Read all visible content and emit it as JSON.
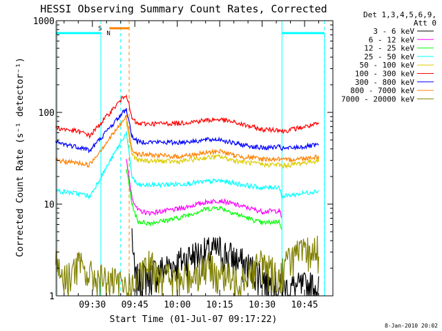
{
  "chart_data": {
    "type": "line",
    "title": "HESSI Observing Summary Count Rates, Corrected",
    "xlabel": "Start Time (01-Jul-07 09:17:22)",
    "ylabel": "Corrected Count Rate (s⁻¹ detector⁻¹)",
    "y_scale": "log",
    "ylim": [
      1,
      1000
    ],
    "xlim": [
      "09:17:22",
      "10:55:00"
    ],
    "x_ticks": [
      "09:30",
      "09:45",
      "10:00",
      "10:15",
      "10:30",
      "10:45"
    ],
    "y_ticks": [
      "1",
      "10",
      "100",
      "1000"
    ],
    "grid": false,
    "legend_position": "right",
    "legend_header": [
      "Det 1,3,4,5,6,9,",
      "Att 0"
    ],
    "series": [
      {
        "name": "3 - 6 keV",
        "color": "#000000",
        "x": [
          "09:17",
          "09:30",
          "09:36",
          "09:39",
          "09:41",
          "09:42",
          "09:44",
          "09:45",
          "10:00",
          "10:05",
          "10:15",
          "10:20",
          "10:30",
          "10:32",
          "10:37",
          "10:50"
        ],
        "y": [
          null,
          null,
          null,
          null,
          null,
          null,
          5,
          1.5,
          2.3,
          2.8,
          3.2,
          2.6,
          1.7,
          1.4,
          1.2,
          1.3
        ]
      },
      {
        "name": "6 - 12 keV",
        "color": "#ff00ff",
        "x": [
          "09:42",
          "09:44",
          "09:46",
          "09:50",
          "10:00",
          "10:10",
          "10:15",
          "10:20",
          "10:30",
          "10:36",
          "10:37"
        ],
        "y": [
          30,
          12,
          8.5,
          8,
          8.8,
          10.5,
          11,
          10,
          8.3,
          8.5,
          7
        ]
      },
      {
        "name": "12 - 25 keV",
        "color": "#00ff00",
        "x": [
          "09:42",
          "09:44",
          "09:46",
          "09:50",
          "10:00",
          "10:10",
          "10:15",
          "10:20",
          "10:30",
          "10:36",
          "10:37"
        ],
        "y": [
          25,
          10,
          6.5,
          6.2,
          7,
          8.8,
          9.2,
          8,
          6.2,
          6.5,
          5.5
        ]
      },
      {
        "name": "25 - 50 keV",
        "color": "#00ffff",
        "x": [
          "09:17",
          "09:25",
          "09:28",
          "09:29",
          "09:42",
          "09:44",
          "09:46",
          "10:00",
          "10:10",
          "10:15",
          "10:20",
          "10:30",
          "10:36",
          "10:37",
          "10:40",
          "10:50"
        ],
        "y": [
          14,
          13,
          12.5,
          12,
          60,
          20,
          16,
          16.5,
          17.5,
          18,
          17,
          15,
          15.5,
          12,
          12.5,
          14
        ]
      },
      {
        "name": "50 - 100 keV",
        "color": "#ddcc00",
        "x": [
          "09:42",
          "09:44",
          "09:46",
          "10:00",
          "10:10",
          "10:15",
          "10:20",
          "10:30",
          "10:36",
          "10:37",
          "10:50"
        ],
        "y": [
          80,
          35,
          30,
          29,
          32,
          33,
          30,
          27,
          27,
          26,
          30
        ]
      },
      {
        "name": "100 - 300 keV",
        "color": "#ff0000",
        "x": [
          "09:17",
          "09:25",
          "09:28",
          "09:29",
          "09:42",
          "09:44",
          "09:46",
          "10:00",
          "10:10",
          "10:15",
          "10:20",
          "10:30",
          "10:36",
          "10:37",
          "10:50"
        ],
        "y": [
          68,
          62,
          58,
          55,
          160,
          85,
          75,
          76,
          82,
          84,
          78,
          65,
          65,
          62,
          75
        ]
      },
      {
        "name": "300 - 800 keV",
        "color": "#0000ff",
        "x": [
          "09:17",
          "09:25",
          "09:28",
          "09:29",
          "09:42",
          "09:44",
          "09:46",
          "10:00",
          "10:10",
          "10:15",
          "10:20",
          "10:30",
          "10:36",
          "10:37",
          "10:50"
        ],
        "y": [
          47,
          42,
          40,
          38,
          110,
          55,
          48,
          47,
          50,
          51,
          46,
          41,
          42,
          40,
          44
        ]
      },
      {
        "name": "800 - 7000 keV",
        "color": "#ff8000",
        "x": [
          "09:17",
          "09:25",
          "09:28",
          "09:29",
          "09:42",
          "09:44",
          "09:46",
          "10:00",
          "10:10",
          "10:15",
          "10:20",
          "10:30",
          "10:36",
          "10:37",
          "10:50"
        ],
        "y": [
          30,
          28,
          27,
          27,
          90,
          40,
          35,
          33,
          36,
          38,
          34,
          31,
          31,
          30,
          33
        ]
      },
      {
        "name": "7000 - 20000 keV",
        "color": "#808000",
        "x": [
          "09:17",
          "09:20",
          "09:25",
          "09:29",
          "09:44",
          "09:50",
          "10:00",
          "10:10",
          "10:20",
          "10:30",
          "10:36",
          "10:40",
          "10:50"
        ],
        "y": [
          2.5,
          1.5,
          2.2,
          1.7,
          1.2,
          2.2,
          1.4,
          2.1,
          1.5,
          2.3,
          1.6,
          2.7,
          3.2
        ]
      }
    ],
    "annotations": [
      {
        "text": "S",
        "color": "#ff8000",
        "time": "09:34"
      },
      {
        "text": "N",
        "color": "#00ffff",
        "time": "09:37"
      }
    ],
    "markers": {
      "cyan_dashed": [
        "09:33",
        "09:40",
        "10:52"
      ],
      "orange_dashed": [
        "09:43"
      ],
      "saa_bar": [
        "09:36",
        "09:43"
      ],
      "night_bar": [
        "09:17",
        "09:33",
        "10:37",
        "10:52"
      ]
    },
    "timestamp": "8-Jan-2010 20:02"
  }
}
